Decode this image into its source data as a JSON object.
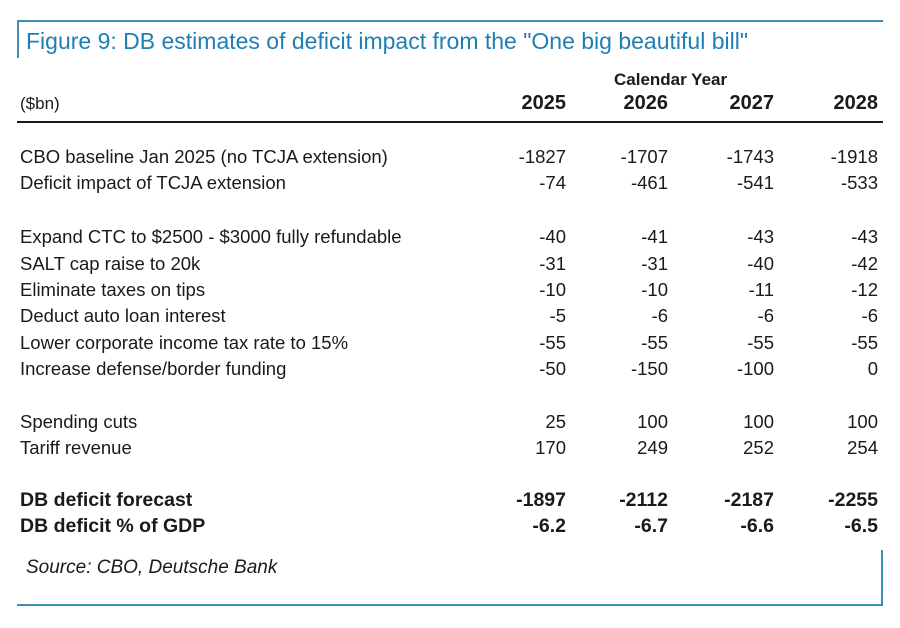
{
  "chart_data": {
    "type": "table",
    "title": "Figure 9: DB estimates of deficit impact from the \"One big beautiful bill\"",
    "column_group_label": "Calendar Year",
    "unit_label": "($bn)",
    "years": [
      "2025",
      "2026",
      "2027",
      "2028"
    ],
    "rows": [
      {
        "label": "CBO baseline Jan 2025 (no TCJA extension)",
        "values": [
          "-1827",
          "-1707",
          "-1743",
          "-1918"
        ]
      },
      {
        "label": "Deficit impact of TCJA extension",
        "values": [
          "-74",
          "-461",
          "-541",
          "-533"
        ]
      },
      {
        "label": "Expand CTC to $2500 - $3000 fully refundable",
        "values": [
          "-40",
          "-41",
          "-43",
          "-43"
        ]
      },
      {
        "label": "SALT cap raise to 20k",
        "values": [
          "-31",
          "-31",
          "-40",
          "-42"
        ]
      },
      {
        "label": "Eliminate taxes on tips",
        "values": [
          "-10",
          "-10",
          "-11",
          "-12"
        ]
      },
      {
        "label": "Deduct auto loan interest",
        "values": [
          "-5",
          "-6",
          "-6",
          "-6"
        ]
      },
      {
        "label": "Lower corporate income tax rate to 15%",
        "values": [
          "-55",
          "-55",
          "-55",
          "-55"
        ]
      },
      {
        "label": "Increase defense/border funding",
        "values": [
          "-50",
          "-150",
          "-100",
          "0"
        ]
      },
      {
        "label": "Spending cuts",
        "values": [
          "25",
          "100",
          "100",
          "100"
        ]
      },
      {
        "label": "Tariff revenue",
        "values": [
          "170",
          "249",
          "252",
          "254"
        ]
      },
      {
        "label": "DB deficit forecast",
        "values": [
          "-1897",
          "-2112",
          "-2187",
          "-2255"
        ]
      },
      {
        "label": "DB deficit % of GDP",
        "values": [
          "-6.2",
          "-6.7",
          "-6.6",
          "-6.5"
        ]
      }
    ],
    "source": "Source: CBO, Deutsche Bank"
  },
  "colors": {
    "title": "#1f7fb4",
    "frame": "#3a8fb5",
    "text": "#1a1a1a"
  }
}
